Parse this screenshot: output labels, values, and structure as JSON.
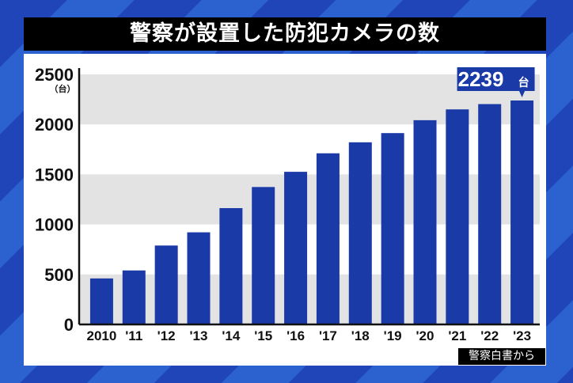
{
  "chart_data": {
    "type": "bar",
    "title": "警察が設置した防犯カメラの数",
    "unit_label": "（台）",
    "categories": [
      "2010",
      "'11",
      "'12",
      "'13",
      "'14",
      "'15",
      "'16",
      "'17",
      "'18",
      "'19",
      "'20",
      "'21",
      "'22",
      "'23"
    ],
    "values": [
      460,
      540,
      789,
      921,
      1163,
      1374,
      1526,
      1711,
      1821,
      1913,
      2042,
      2150,
      2203,
      2239
    ],
    "ylim": [
      0,
      2500
    ],
    "yticks": [
      0,
      500,
      1000,
      1500,
      2000,
      2500
    ],
    "grid": "alternating bands",
    "callout": {
      "value": "2239",
      "unit": "台",
      "category": "'23"
    },
    "source": "警察白書から",
    "colors": {
      "bar": "#1a3aa8",
      "band": "#e3e3e3",
      "background": "#2450c0"
    }
  }
}
